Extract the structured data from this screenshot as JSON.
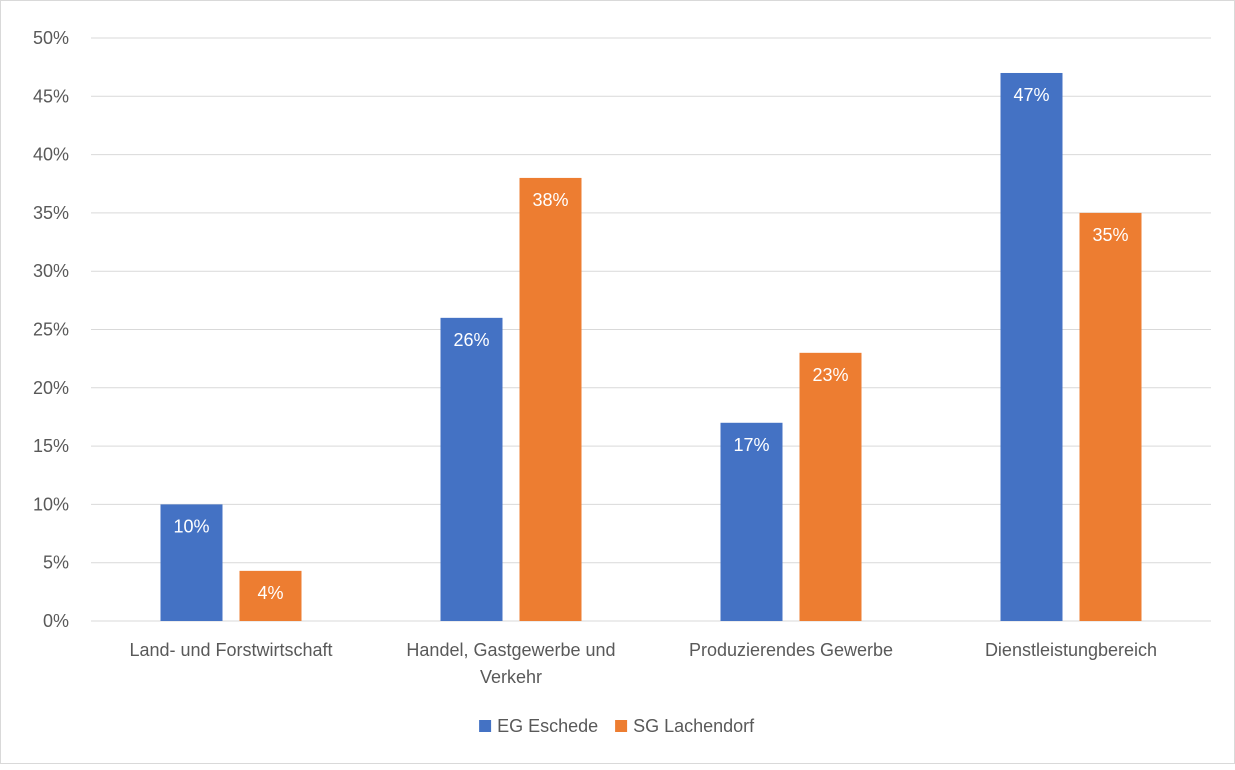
{
  "chart_data": {
    "type": "bar",
    "categories": [
      [
        "Land- und Forstwirtschaft"
      ],
      [
        "Handel, Gastgewerbe und",
        "Verkehr"
      ],
      [
        "Produzierendes Gewerbe"
      ],
      [
        "Dienstleistungbereich"
      ]
    ],
    "series": [
      {
        "name": "EG Eschede",
        "color": "#4472c4",
        "values": [
          10,
          26,
          17,
          47
        ],
        "labels": [
          "10%",
          "26%",
          "17%",
          "47%"
        ]
      },
      {
        "name": "SG Lachendorf",
        "color": "#ed7d31",
        "values": [
          4.3,
          38,
          23,
          35
        ],
        "labels": [
          "4%",
          "38%",
          "23%",
          "35%"
        ]
      }
    ],
    "ylim": [
      0,
      50
    ],
    "yticks": [
      "0%",
      "5%",
      "10%",
      "15%",
      "20%",
      "25%",
      "30%",
      "35%",
      "40%",
      "45%",
      "50%"
    ],
    "grid": true,
    "legend_position": "bottom",
    "gridline_color": "#d9d9d9",
    "text_color": "#595959"
  }
}
